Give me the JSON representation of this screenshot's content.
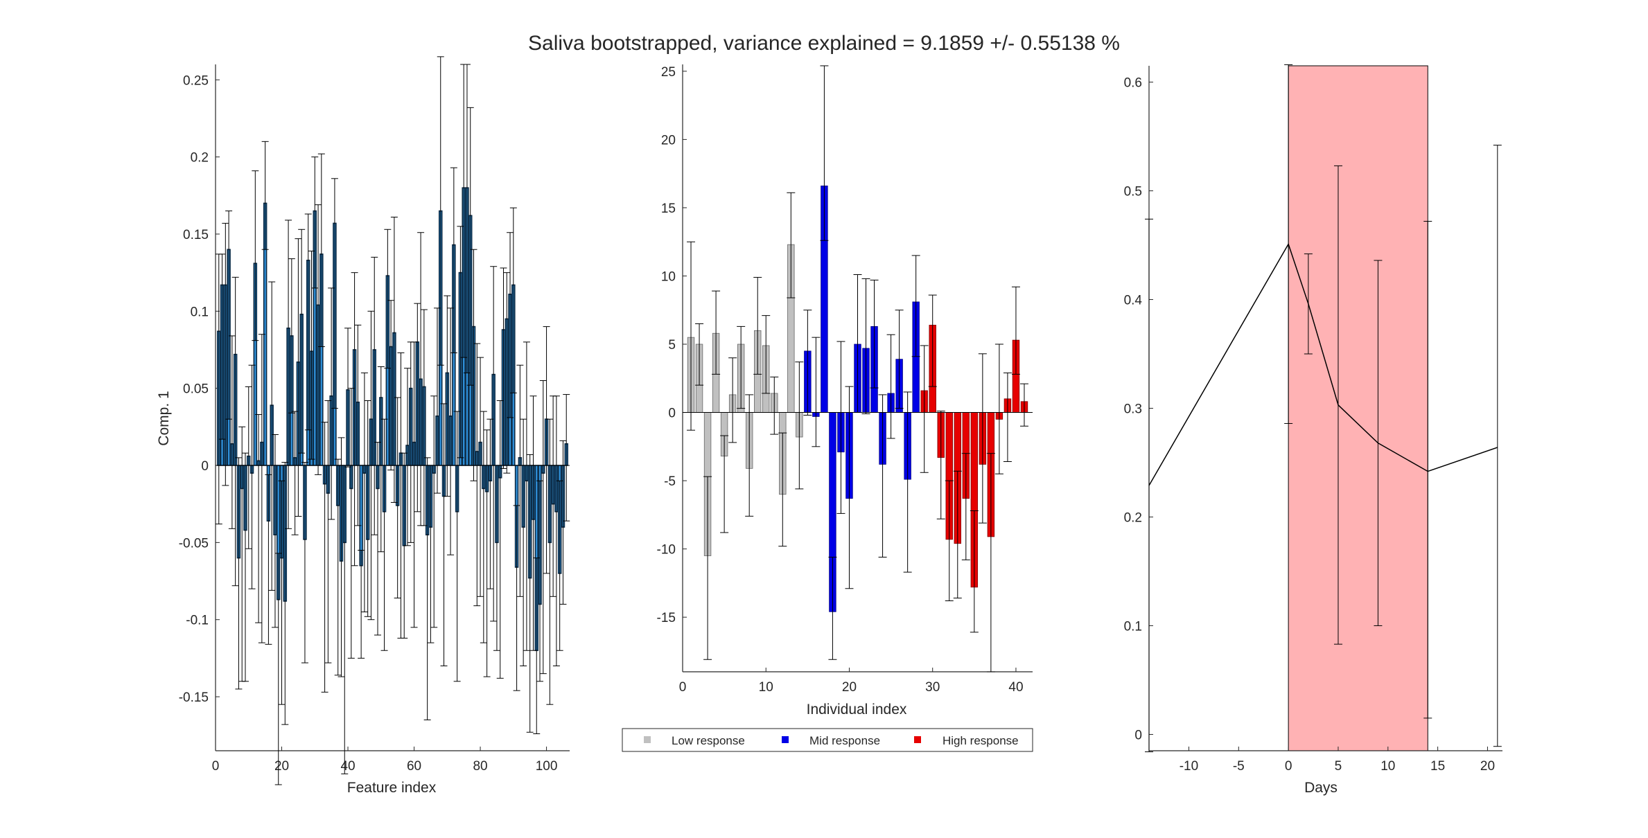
{
  "figure": {
    "title": "Saliva bootstrapped, variance explained = 9.1859 +/- 0.55138 %"
  },
  "chart_data": [
    {
      "type": "bar",
      "name": "loadings",
      "xlabel": "Feature index",
      "ylabel": "Comp. 1",
      "xlim": [
        0,
        107
      ],
      "ylim": [
        -0.185,
        0.26
      ],
      "xticks": [
        0,
        20,
        40,
        60,
        80,
        100
      ],
      "yticks": [
        -0.15,
        -0.1,
        -0.05,
        0,
        0.05,
        0.1,
        0.15,
        0.2,
        0.25
      ],
      "ytick_labels": [
        "-0.15",
        "-0.1",
        "-0.05",
        "0",
        "0.05",
        "0.1",
        "0.15",
        "0.2",
        "0.25"
      ],
      "bar_color": "#2f8fd8",
      "bar_edge": "#0d2b45",
      "grid": false,
      "x": [
        1,
        2,
        3,
        4,
        5,
        6,
        7,
        8,
        9,
        10,
        11,
        12,
        13,
        14,
        15,
        16,
        17,
        18,
        19,
        20,
        21,
        22,
        23,
        24,
        25,
        26,
        27,
        28,
        29,
        30,
        31,
        32,
        33,
        34,
        35,
        36,
        37,
        38,
        39,
        40,
        41,
        42,
        43,
        44,
        45,
        46,
        47,
        48,
        49,
        50,
        51,
        52,
        53,
        54,
        55,
        56,
        57,
        58,
        59,
        60,
        61,
        62,
        63,
        64,
        65,
        66,
        67,
        68,
        69,
        70,
        71,
        72,
        73,
        74,
        75,
        76,
        77,
        78,
        79,
        80,
        81,
        82,
        83,
        84,
        85,
        86,
        87,
        88,
        89,
        90,
        91,
        92,
        93,
        94,
        95,
        96,
        97,
        98,
        99,
        100,
        101,
        102,
        103,
        104,
        105,
        106
      ],
      "values": [
        0.087,
        0.117,
        0.117,
        0.14,
        0.014,
        0.072,
        -0.06,
        -0.015,
        -0.042,
        0.006,
        -0.005,
        0.131,
        0.003,
        0.015,
        0.17,
        -0.036,
        0.039,
        -0.045,
        -0.087,
        -0.06,
        -0.088,
        0.089,
        0.084,
        0.005,
        0.067,
        0.098,
        -0.048,
        0.133,
        0.074,
        0.165,
        0.104,
        0.137,
        -0.012,
        -0.018,
        0.045,
        0.157,
        -0.026,
        -0.062,
        -0.05,
        0.049,
        -0.015,
        0.075,
        0.041,
        -0.065,
        -0.005,
        -0.048,
        0.03,
        0.075,
        -0.015,
        0.044,
        -0.03,
        0.123,
        0.077,
        0.086,
        -0.026,
        0.008,
        -0.052,
        0.013,
        0.05,
        0.015,
        0.08,
        0.056,
        0.051,
        -0.045,
        -0.04,
        -0.005,
        0.032,
        0.165,
        -0.02,
        0.06,
        0.032,
        0.143,
        -0.03,
        0.125,
        0.18,
        0.18,
        0.162,
        0.09,
        0.009,
        0.015,
        -0.015,
        -0.017,
        -0.01,
        0.059,
        -0.05,
        -0.008,
        0.088,
        0.095,
        0.111,
        0.117,
        -0.066,
        0.005,
        -0.04,
        -0.01,
        -0.073,
        -0.035,
        -0.12,
        -0.09,
        -0.005,
        0.03,
        -0.05,
        -0.025,
        -0.03,
        -0.07,
        -0.04,
        0.014
      ],
      "err_low": [
        0.125,
        0.1,
        0.13,
        0.11,
        0.055,
        0.15,
        0.085,
        0.125,
        0.098,
        0.06,
        0.075,
        0.05,
        0.105,
        0.13,
        0.03,
        0.08,
        0.12,
        0.06,
        0.12,
        0.095,
        0.08,
        0.13,
        0.05,
        0.05,
        0.1,
        0.09,
        0.08,
        0.11,
        0.07,
        0.05,
        0.11,
        0.06,
        0.135,
        0.11,
        0.08,
        0.12,
        0.11,
        0.075,
        0.15,
        0.05,
        0.11,
        0.14,
        0.08,
        0.06,
        0.09,
        0.05,
        0.13,
        0.12,
        0.095,
        0.1,
        0.09,
        0.06,
        0.08,
        0.11,
        0.06,
        0.12,
        0.06,
        0.065,
        0.1,
        0.12,
        0.11,
        0.095,
        0.09,
        0.12,
        0.075,
        0.1,
        0.05,
        0.1,
        0.11,
        0.08,
        0.09,
        0.07,
        0.11,
        0.12,
        0.11,
        0.12,
        0.11,
        0.1,
        0.1,
        0.1,
        0.1,
        0.12,
        0.07,
        0.16,
        0.07,
        0.13,
        0.09,
        0.1,
        0.08,
        0.07,
        0.08,
        0.09,
        0.09,
        0.11,
        0.1,
        0.085,
        0.054,
        0.05,
        0.13,
        0.1,
        0.105,
        0.06,
        0.1,
        0.05,
        0.05,
        0.05
      ],
      "err_high": [
        0.05,
        0.02,
        0.04,
        0.025,
        0.07,
        0.05,
        0.065,
        0.04,
        0.05,
        0.045,
        0.07,
        0.06,
        0.03,
        0.07,
        0.04,
        0.03,
        0.08,
        0.065,
        0.03,
        0.05,
        0.09,
        0.07,
        0.05,
        0.03,
        0.08,
        0.055,
        0.05,
        0.03,
        0.065,
        0.035,
        0.065,
        0.065,
        0.04,
        0.06,
        0.07,
        0.029,
        0.03,
        0.08,
        0.05,
        0.04,
        0.065,
        0.05,
        0.05,
        0.01,
        0.065,
        0.09,
        0.07,
        0.06,
        0.03,
        0.02,
        0.06,
        0.03,
        0.03,
        0.075,
        0.07,
        0.065,
        0.06,
        0.05,
        0.03,
        0.065,
        0.025,
        0.095,
        0.05,
        0.05,
        0.04,
        0.05,
        0.07,
        0.1,
        0.06,
        0.05,
        0.07,
        0.05,
        0.065,
        0.03,
        0.08,
        0.08,
        0.07,
        0.05,
        0.07,
        0.055,
        0.05,
        0.04,
        0.04,
        0.07,
        0.05,
        0.05,
        0.04,
        0.03,
        0.04,
        0.05,
        0.04,
        0.06,
        0.07,
        0.09,
        0.08,
        0.08,
        0.06,
        0.08,
        0.06,
        0.06,
        0.08,
        0.07,
        0.075,
        0.06,
        0.056,
        0.032
      ]
    },
    {
      "type": "bar",
      "name": "individuals",
      "xlabel": "Individual index",
      "ylabel": "",
      "xlim": [
        0,
        42
      ],
      "ylim": [
        -19,
        25.5
      ],
      "xticks": [
        0,
        10,
        20,
        30,
        40
      ],
      "yticks": [
        -15,
        -10,
        -5,
        0,
        5,
        10,
        15,
        20,
        25
      ],
      "ytick_labels": [
        "-15",
        "-10",
        "-5",
        "0",
        "5",
        "10",
        "15",
        "20",
        "25"
      ],
      "grid": false,
      "legend": {
        "placement": "below",
        "entries": [
          {
            "label": "Low response",
            "color": "#c0c0c0"
          },
          {
            "label": "Mid response",
            "color": "#0000e6"
          },
          {
            "label": "High response",
            "color": "#e60000"
          }
        ]
      },
      "x": [
        1,
        2,
        3,
        4,
        5,
        6,
        7,
        8,
        9,
        10,
        11,
        12,
        13,
        14,
        15,
        16,
        17,
        18,
        19,
        20,
        21,
        22,
        23,
        24,
        25,
        26,
        27,
        28,
        29,
        30,
        31,
        32,
        33,
        34,
        35,
        36,
        37,
        38,
        39,
        40,
        41
      ],
      "groups": [
        0,
        0,
        0,
        0,
        0,
        0,
        0,
        0,
        0,
        0,
        0,
        0,
        0,
        0,
        1,
        1,
        1,
        1,
        1,
        1,
        1,
        1,
        1,
        1,
        1,
        1,
        1,
        1,
        2,
        2,
        2,
        2,
        2,
        2,
        2,
        2,
        2,
        2,
        2,
        2,
        2
      ],
      "values": [
        5.5,
        5.0,
        -10.5,
        5.8,
        -3.2,
        1.3,
        5.0,
        -4.1,
        6.0,
        4.9,
        1.4,
        -6.0,
        12.3,
        -1.8,
        4.5,
        -0.3,
        16.6,
        -14.6,
        -2.9,
        -6.3,
        5.0,
        4.7,
        6.3,
        -3.8,
        1.4,
        3.9,
        -4.9,
        8.1,
        1.6,
        6.4,
        -3.3,
        -9.3,
        -9.6,
        -6.3,
        -12.8,
        -3.8,
        -9.1,
        -0.5,
        1.0,
        5.3,
        0.8
      ],
      "err_low": [
        6.8,
        3.0,
        7.6,
        3.0,
        5.6,
        3.5,
        4.7,
        3.5,
        3.2,
        3.5,
        3.0,
        3.8,
        3.9,
        3.8,
        4.7,
        2.2,
        4.0,
        3.5,
        4.5,
        6.6,
        5.0,
        4.8,
        4.5,
        6.8,
        3.3,
        3.6,
        6.8,
        4.0,
        6.0,
        4.5,
        4.5,
        4.5,
        4.0,
        4.5,
        3.3,
        4.3,
        9.9,
        4.0,
        4.6,
        2.5,
        1.8
      ],
      "err_high": [
        7.0,
        1.5,
        5.8,
        3.1,
        1.5,
        2.7,
        1.3,
        5.4,
        3.9,
        2.2,
        1.2,
        4.5,
        3.8,
        5.5,
        3.0,
        5.8,
        8.8,
        4.0,
        8.1,
        8.2,
        5.1,
        5.1,
        3.4,
        5.1,
        4.3,
        3.6,
        6.4,
        3.4,
        3.3,
        2.2,
        3.4,
        4.3,
        5.3,
        3.3,
        5.6,
        8.1,
        6.1,
        5.5,
        1.9,
        3.9,
        1.3
      ]
    },
    {
      "type": "line",
      "name": "time-course",
      "xlabel": "Days",
      "ylabel": "",
      "xlim": [
        -14,
        21.5
      ],
      "ylim": [
        -0.015,
        0.615
      ],
      "xticks": [
        -10,
        -5,
        0,
        5,
        10,
        15,
        20
      ],
      "yticks": [
        0,
        0.1,
        0.2,
        0.3,
        0.4,
        0.5,
        0.6
      ],
      "ytick_labels": [
        "0",
        "0.1",
        "0.2",
        "0.3",
        "0.4",
        "0.5",
        "0.6"
      ],
      "grid": false,
      "shaded_region": {
        "x": [
          0,
          14
        ],
        "color": "#ffb2b4"
      },
      "x": [
        -14,
        0,
        2,
        5,
        9,
        14,
        21
      ],
      "y": [
        0.229,
        0.451,
        0.396,
        0.303,
        0.268,
        0.242,
        0.264
      ],
      "err_low": [
        0.245,
        0.165,
        0.046,
        0.22,
        0.168,
        0.227,
        0.275
      ],
      "err_high": [
        0.245,
        0.165,
        0.046,
        0.22,
        0.168,
        0.23,
        0.278
      ]
    }
  ]
}
